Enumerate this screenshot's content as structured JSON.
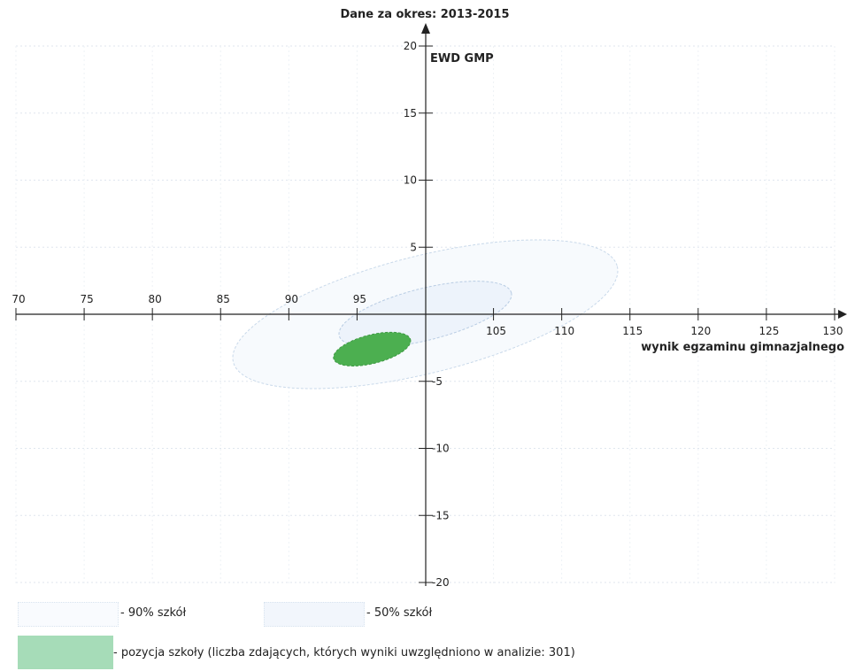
{
  "chart_data": {
    "type": "scatter",
    "title": "Dane za okres: 2013-2015",
    "xlabel": "wynik egzaminu gimnazjalnego",
    "ylabel": "EWD GMP",
    "xlim": [
      70,
      130
    ],
    "ylim": [
      -20,
      20
    ],
    "x_ticks": [
      70,
      75,
      80,
      85,
      90,
      95,
      105,
      110,
      115,
      120,
      125,
      130
    ],
    "y_ticks": [
      20,
      15,
      10,
      5,
      -5,
      -10,
      -15,
      -20
    ],
    "grid": true,
    "ellipses": [
      {
        "name": "90% szkół",
        "center": [
          100,
          0
        ],
        "semi_major": 14.5,
        "semi_minor": 4.3,
        "angle_deg": 14,
        "fill": "#f7fafd",
        "stroke": "#c9d9ea"
      },
      {
        "name": "50% szkół",
        "center": [
          100,
          0
        ],
        "semi_major": 6.5,
        "semi_minor": 1.9,
        "angle_deg": 14,
        "fill": "#edf3fb",
        "stroke": "#b8cce3"
      },
      {
        "name": "pozycja szkoły",
        "center": [
          96.1,
          -2.6
        ],
        "semi_major": 2.9,
        "semi_minor": 1.05,
        "angle_deg": 14,
        "fill": "#4caf50",
        "stroke": "#3e9a43"
      }
    ]
  },
  "legend": {
    "p90": "- 90% szkół",
    "p50": "- 50% szkół",
    "school": "- pozycja szkoły (liczba zdających, których wyniki uwzględniono w analizie: 301)",
    "school_color": "#a6dcb8"
  }
}
